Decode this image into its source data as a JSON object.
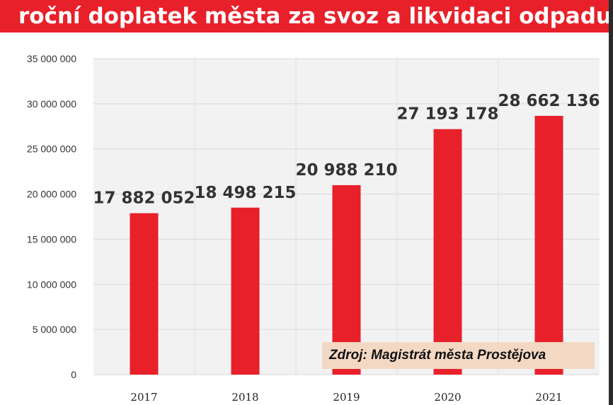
{
  "chart_data": {
    "type": "bar",
    "title": "roční doplatek města za svoz a likvidaci odpadu",
    "categories": [
      "2017",
      "2018",
      "2019",
      "2020",
      "2021"
    ],
    "values": [
      17882052,
      18498215,
      20988210,
      27193178,
      28662136
    ],
    "value_labels": [
      "17 882 052",
      "18 498 215",
      "20 988 210",
      "27 193 178",
      "28 662 136"
    ],
    "y_ticks": [
      0,
      5000000,
      10000000,
      15000000,
      20000000,
      25000000,
      30000000,
      35000000
    ],
    "y_tick_labels": [
      "0",
      "5 000 000",
      "10 000 000",
      "15 000 000",
      "20 000 000",
      "25 000 000",
      "30 000 000",
      "35 000 000"
    ],
    "ylim": [
      0,
      35000000
    ],
    "grid": true,
    "bar_color": "#e8202a",
    "source": "Zdroj: Magistrát města Prostějova"
  },
  "colors": {
    "accent": "#e8202a",
    "plot_background": "#f2f2f2",
    "source_background": "#f3d8c4"
  }
}
